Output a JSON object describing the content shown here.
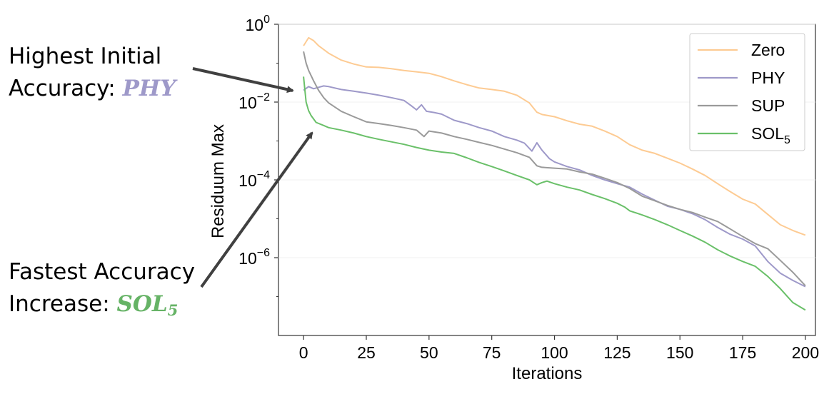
{
  "annotations": [
    {
      "line1": "Highest Initial",
      "line2_prefix": "Accuracy: ",
      "highlight": "PHY",
      "highlight_sub": "",
      "color": "#9e99c9"
    },
    {
      "line1": "Fastest Accuracy",
      "line2_prefix": "Increase: ",
      "highlight": "SOL",
      "highlight_sub": "5",
      "color": "#66b366"
    }
  ],
  "chart_data": {
    "type": "line",
    "title": "",
    "xlabel": "Iterations",
    "ylabel": "Residuum Max",
    "xlim": [
      -10,
      204
    ],
    "ylim": [
      1e-08,
      1.0
    ],
    "yscale": "log",
    "xticks": [
      0,
      25,
      50,
      75,
      100,
      125,
      150,
      175,
      200
    ],
    "yticks": [
      {
        "base": "10",
        "exp": "0"
      },
      {
        "base": "10",
        "exp": "−2"
      },
      {
        "base": "10",
        "exp": "−4"
      },
      {
        "base": "10",
        "exp": "−6"
      }
    ],
    "grid": false,
    "legend": "top-right",
    "series": [
      {
        "name": "Zero",
        "name_sub": "",
        "color": "#fdcb93",
        "points": [
          [
            0,
            0.28
          ],
          [
            2,
            0.45
          ],
          [
            4,
            0.38
          ],
          [
            6,
            0.28
          ],
          [
            10,
            0.18
          ],
          [
            15,
            0.12
          ],
          [
            20,
            0.095
          ],
          [
            25,
            0.08
          ],
          [
            30,
            0.078
          ],
          [
            35,
            0.072
          ],
          [
            40,
            0.065
          ],
          [
            45,
            0.06
          ],
          [
            50,
            0.055
          ],
          [
            55,
            0.045
          ],
          [
            60,
            0.035
          ],
          [
            65,
            0.028
          ],
          [
            70,
            0.023
          ],
          [
            75,
            0.021
          ],
          [
            80,
            0.019
          ],
          [
            85,
            0.015
          ],
          [
            90,
            0.0095
          ],
          [
            93,
            0.0055
          ],
          [
            95,
            0.0048
          ],
          [
            100,
            0.0042
          ],
          [
            105,
            0.0033
          ],
          [
            110,
            0.0027
          ],
          [
            115,
            0.0024
          ],
          [
            120,
            0.0018
          ],
          [
            125,
            0.0013
          ],
          [
            130,
            0.0008
          ],
          [
            135,
            0.00058
          ],
          [
            140,
            0.00048
          ],
          [
            145,
            0.00036
          ],
          [
            150,
            0.00027
          ],
          [
            155,
            0.00019
          ],
          [
            160,
            0.00013
          ],
          [
            165,
            8e-05
          ],
          [
            170,
            5e-05
          ],
          [
            175,
            3.2e-05
          ],
          [
            180,
            2.4e-05
          ],
          [
            185,
            1.3e-05
          ],
          [
            190,
            7e-06
          ],
          [
            195,
            5e-06
          ],
          [
            200,
            3.8e-06
          ]
        ]
      },
      {
        "name": "PHY",
        "name_sub": "",
        "color": "#9e99c9",
        "points": [
          [
            0,
            0.02
          ],
          [
            2,
            0.025
          ],
          [
            4,
            0.022
          ],
          [
            6,
            0.024
          ],
          [
            8,
            0.026
          ],
          [
            10,
            0.025
          ],
          [
            15,
            0.021
          ],
          [
            20,
            0.019
          ],
          [
            25,
            0.017
          ],
          [
            30,
            0.015
          ],
          [
            35,
            0.013
          ],
          [
            40,
            0.011
          ],
          [
            43,
            0.008
          ],
          [
            45,
            0.0063
          ],
          [
            47,
            0.0085
          ],
          [
            49,
            0.0058
          ],
          [
            52,
            0.0054
          ],
          [
            55,
            0.0049
          ],
          [
            60,
            0.0034
          ],
          [
            65,
            0.0028
          ],
          [
            70,
            0.0022
          ],
          [
            75,
            0.0018
          ],
          [
            80,
            0.0013
          ],
          [
            85,
            0.00105
          ],
          [
            88,
            0.00088
          ],
          [
            91,
            0.00055
          ],
          [
            93,
            0.0009
          ],
          [
            95,
            0.00058
          ],
          [
            98,
            0.00035
          ],
          [
            100,
            0.00029
          ],
          [
            105,
            0.00022
          ],
          [
            110,
            0.00018
          ],
          [
            115,
            0.00013
          ],
          [
            120,
            0.0001
          ],
          [
            125,
            8e-05
          ],
          [
            130,
            6.5e-05
          ],
          [
            135,
            4.3e-05
          ],
          [
            140,
            3e-05
          ],
          [
            145,
            2.1e-05
          ],
          [
            150,
            1.75e-05
          ],
          [
            155,
            1.35e-05
          ],
          [
            160,
            9.5e-06
          ],
          [
            165,
            6e-06
          ],
          [
            170,
            4e-06
          ],
          [
            175,
            3e-06
          ],
          [
            180,
            2e-06
          ],
          [
            185,
            8e-07
          ],
          [
            190,
            4e-07
          ],
          [
            195,
            2.6e-07
          ],
          [
            200,
            1.8e-07
          ]
        ]
      },
      {
        "name": "SUP",
        "name_sub": "",
        "color": "#9a9a9a",
        "points": [
          [
            0,
            0.2
          ],
          [
            1,
            0.1
          ],
          [
            2,
            0.065
          ],
          [
            4,
            0.035
          ],
          [
            6,
            0.02
          ],
          [
            8,
            0.013
          ],
          [
            10,
            0.0095
          ],
          [
            15,
            0.0058
          ],
          [
            20,
            0.0042
          ],
          [
            25,
            0.0031
          ],
          [
            30,
            0.0028
          ],
          [
            35,
            0.0025
          ],
          [
            40,
            0.0022
          ],
          [
            45,
            0.0019
          ],
          [
            48,
            0.0013
          ],
          [
            50,
            0.0018
          ],
          [
            55,
            0.0016
          ],
          [
            60,
            0.0013
          ],
          [
            65,
            0.0011
          ],
          [
            70,
            0.00092
          ],
          [
            75,
            0.00077
          ],
          [
            80,
            0.00062
          ],
          [
            85,
            0.0005
          ],
          [
            90,
            0.00038
          ],
          [
            93,
            0.00023
          ],
          [
            95,
            0.00021
          ],
          [
            100,
            0.0002
          ],
          [
            105,
            0.00019
          ],
          [
            110,
            0.00016
          ],
          [
            115,
            0.00014
          ],
          [
            120,
            0.00011
          ],
          [
            125,
            8.5e-05
          ],
          [
            130,
            6e-05
          ],
          [
            135,
            3.8e-05
          ],
          [
            140,
            2.9e-05
          ],
          [
            145,
            2.2e-05
          ],
          [
            150,
            1.75e-05
          ],
          [
            155,
            1.45e-05
          ],
          [
            160,
            1.1e-05
          ],
          [
            165,
            8.5e-06
          ],
          [
            170,
            5.5e-06
          ],
          [
            175,
            3.5e-06
          ],
          [
            180,
            2.3e-06
          ],
          [
            185,
            1.7e-06
          ],
          [
            190,
            8.5e-07
          ],
          [
            195,
            4.2e-07
          ],
          [
            200,
            1.9e-07
          ]
        ]
      },
      {
        "name": "SOL",
        "name_sub": "5",
        "color": "#6ac069",
        "points": [
          [
            0,
            0.045
          ],
          [
            1,
            0.01
          ],
          [
            2,
            0.006
          ],
          [
            3,
            0.0045
          ],
          [
            5,
            0.003
          ],
          [
            8,
            0.0025
          ],
          [
            10,
            0.0022
          ],
          [
            15,
            0.0019
          ],
          [
            20,
            0.0016
          ],
          [
            25,
            0.0013
          ],
          [
            30,
            0.0011
          ],
          [
            35,
            0.00095
          ],
          [
            40,
            0.00082
          ],
          [
            45,
            0.00068
          ],
          [
            50,
            0.00058
          ],
          [
            55,
            0.00052
          ],
          [
            60,
            0.00048
          ],
          [
            65,
            0.00037
          ],
          [
            70,
            0.00028
          ],
          [
            75,
            0.00022
          ],
          [
            80,
            0.00017
          ],
          [
            85,
            0.00013
          ],
          [
            90,
            0.0001
          ],
          [
            93,
            7.5e-05
          ],
          [
            95,
            8.5e-05
          ],
          [
            97,
            9.3e-05
          ],
          [
            100,
            8e-05
          ],
          [
            105,
            6.5e-05
          ],
          [
            110,
            5.5e-05
          ],
          [
            115,
            4.2e-05
          ],
          [
            120,
            3.3e-05
          ],
          [
            125,
            2.5e-05
          ],
          [
            128,
            2e-05
          ],
          [
            130,
            1.6e-05
          ],
          [
            135,
            1.25e-05
          ],
          [
            140,
            9.5e-06
          ],
          [
            145,
            7e-06
          ],
          [
            150,
            5e-06
          ],
          [
            155,
            3.6e-06
          ],
          [
            160,
            2.5e-06
          ],
          [
            165,
            1.6e-06
          ],
          [
            170,
            1.1e-06
          ],
          [
            175,
            8e-07
          ],
          [
            180,
            6e-07
          ],
          [
            185,
            3.3e-07
          ],
          [
            190,
            1.6e-07
          ],
          [
            195,
            7e-08
          ],
          [
            200,
            4.5e-08
          ]
        ]
      }
    ]
  }
}
